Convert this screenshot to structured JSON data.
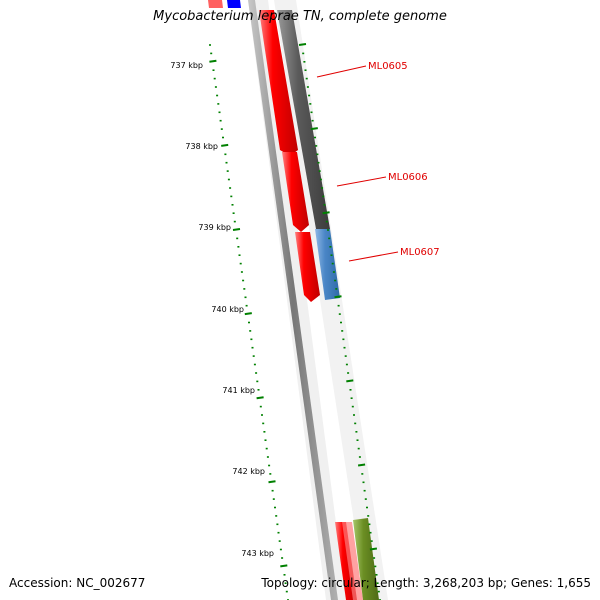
{
  "title": "Mycobacterium leprae TN, complete genome",
  "footer": {
    "accession": "Accession: NC_002677",
    "summary": "Topology: circular; Length: 3,268,203 bp; Genes: 1,655"
  },
  "colors": {
    "forward_gene": "#ff0000",
    "reverse_gene": "#0000ff",
    "pseudo_gene": "#555555",
    "highlight_gene": "#4a86c6",
    "other_gene": "#6b8e23",
    "scale_tick": "#008000",
    "backbone": "#888888",
    "label": "#e00000"
  },
  "scale_ticks": [
    "737 kbp",
    "738 kbp",
    "739 kbp",
    "740 kbp",
    "741 kbp",
    "742 kbp",
    "743 kbp"
  ],
  "gene_labels": [
    "ML0605",
    "ML0606",
    "ML0607"
  ]
}
